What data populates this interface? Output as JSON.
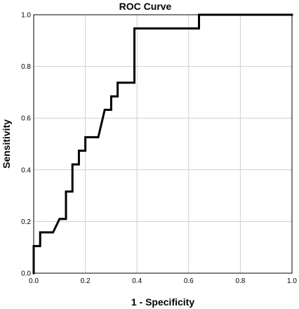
{
  "chart_data": {
    "type": "line",
    "title": "ROC Curve",
    "xlabel": "1 - Specificity",
    "ylabel": "Sensitivity",
    "xlim": [
      0,
      1
    ],
    "ylim": [
      0,
      1
    ],
    "xticks": [
      "0.0",
      "0.2",
      "0.4",
      "0.6",
      "0.8",
      "1.0"
    ],
    "yticks": [
      "0.0",
      "0.2",
      "0.4",
      "0.6",
      "0.8",
      "1.0"
    ],
    "grid": true,
    "series": [
      {
        "x": [
          0.0,
          0.0,
          0.025,
          0.025,
          0.075,
          0.1,
          0.125,
          0.125,
          0.15,
          0.15,
          0.175,
          0.175,
          0.2,
          0.2,
          0.25,
          0.275,
          0.3,
          0.3,
          0.325,
          0.325,
          0.39,
          0.39,
          0.64,
          0.64,
          1.0
        ],
        "y": [
          0.0,
          0.105,
          0.105,
          0.158,
          0.158,
          0.21,
          0.21,
          0.316,
          0.316,
          0.421,
          0.421,
          0.474,
          0.474,
          0.526,
          0.526,
          0.632,
          0.632,
          0.684,
          0.684,
          0.737,
          0.737,
          0.947,
          0.947,
          1.0,
          1.0
        ]
      }
    ]
  }
}
